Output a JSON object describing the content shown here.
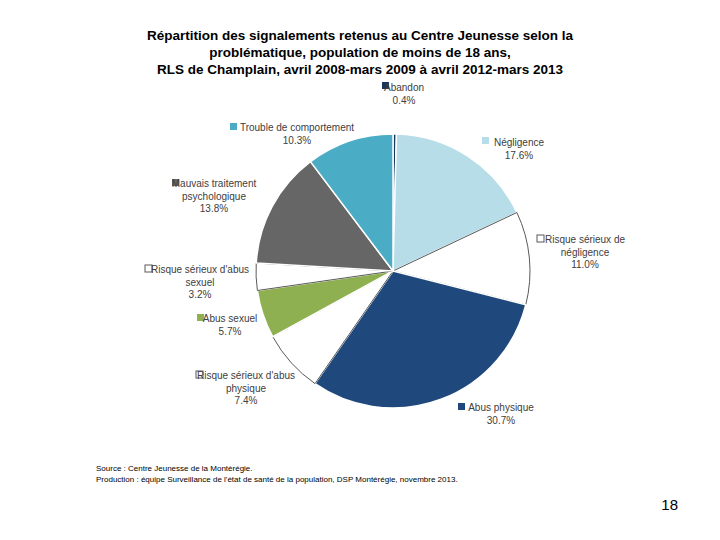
{
  "chart_data": {
    "type": "pie",
    "title": [
      "Répartition des signalements retenus au Centre Jeunesse selon la",
      "problématique, population de moins de 18 ans,",
      "RLS de Champlain, avril 2008-mars 2009 à avril 2012-mars 2013"
    ],
    "categories": [
      "Abandon",
      "Négligence",
      "Risque sérieux de négligence",
      "Abus physique",
      "Risque sérieux d'abus physique",
      "Abus sexuel",
      "Risque sérieux d'abus sexuel",
      "Mauvais traitement psychologique",
      "Trouble de comportement"
    ],
    "values": [
      0.4,
      17.6,
      11.0,
      30.7,
      7.4,
      5.7,
      3.2,
      13.8,
      10.3
    ],
    "value_labels": [
      "0.4%",
      "17.6%",
      "11.0%",
      "30.7%",
      "7.4%",
      "5.7%",
      "3.2%",
      "13.8%",
      "10.3%"
    ],
    "colors": [
      "#17375e",
      "#b7dde8",
      "#ffffff",
      "#1f497d",
      "#ffffff",
      "#8fb050",
      "#ffffff",
      "#666666",
      "#4bacc6"
    ],
    "data_labels": true,
    "annotations": [
      "Source : Centre Jeunesse de la Montérégie.",
      "Production : équipe Surveillance de l'état de santé de la population, DSP Montérégie, novembre 2013."
    ],
    "page_number": "18"
  }
}
